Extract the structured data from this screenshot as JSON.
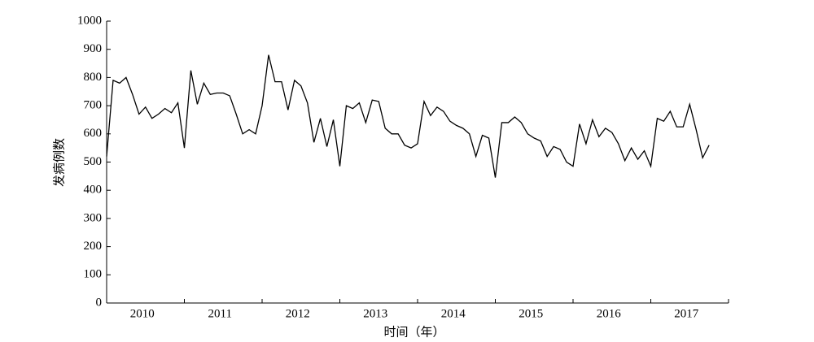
{
  "chart_data": {
    "type": "line",
    "x_label": "时间（年）",
    "y_label": "发病例数",
    "categories": [
      null,
      null,
      null,
      null,
      null,
      null,
      "2010",
      null,
      null,
      null,
      null,
      null,
      null,
      null,
      null,
      null,
      null,
      null,
      "2011",
      null,
      null,
      null,
      null,
      null,
      null,
      null,
      null,
      null,
      null,
      null,
      "2012",
      null,
      null,
      null,
      null,
      null,
      null,
      null,
      null,
      null,
      null,
      null,
      "2013",
      null,
      null,
      null,
      null,
      null,
      null,
      null,
      null,
      null,
      null,
      null,
      "2014",
      null,
      null,
      null,
      null,
      null,
      null,
      null,
      null,
      null,
      null,
      null,
      "2015",
      null,
      null,
      null,
      null,
      null,
      null,
      null,
      null,
      null,
      null,
      null,
      "2016",
      null,
      null,
      null,
      null,
      null,
      null,
      null,
      null,
      null,
      null,
      null,
      "2017",
      null,
      null,
      null
    ],
    "series": [
      {
        "color": "#000000",
        "values": [
          520,
          790,
          780,
          800,
          740,
          670,
          695,
          655,
          670,
          690,
          675,
          710,
          550,
          825,
          705,
          780,
          740,
          745,
          745,
          735,
          670,
          600,
          615,
          600,
          700,
          880,
          785,
          785,
          685,
          790,
          770,
          710,
          570,
          655,
          555,
          650,
          485,
          700,
          690,
          710,
          640,
          720,
          715,
          620,
          600,
          600,
          560,
          550,
          565,
          715,
          665,
          695,
          680,
          645,
          630,
          620,
          600,
          520,
          595,
          585,
          445,
          640,
          640,
          660,
          640,
          600,
          585,
          575,
          520,
          555,
          545,
          500,
          485,
          635,
          565,
          650,
          590,
          620,
          605,
          565,
          505,
          550,
          510,
          540,
          485,
          655,
          645,
          680,
          625,
          625,
          705,
          615,
          515,
          560
        ]
      }
    ],
    "ylim": [
      0,
      1000
    ],
    "yticks": [
      0,
      100,
      200,
      300,
      400,
      500,
      600,
      700,
      800,
      900,
      1000
    ]
  }
}
